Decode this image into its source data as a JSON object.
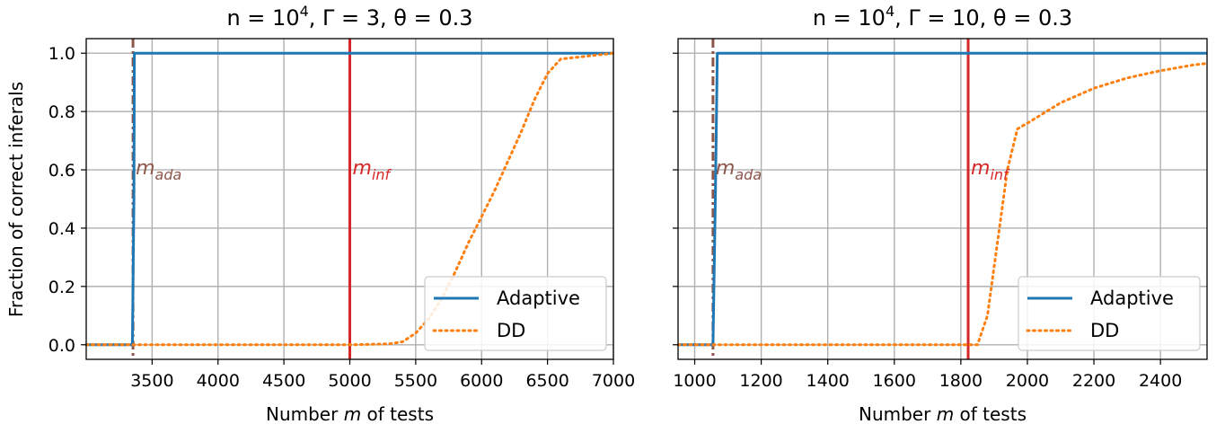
{
  "colors": {
    "adaptive": "#1f77b4",
    "dd": "#ff7f0e",
    "m_inf_line": "#d62728",
    "m_ada_line": "#8c564b",
    "grid": "#b0b0b0"
  },
  "chart_data": [
    {
      "type": "line",
      "title": "n = 10⁴, Γ = 3, θ = 0.3",
      "title_parts": {
        "n_base": "n = 10",
        "n_exp": "4",
        "rest": ", Γ = 3, θ = 0.3"
      },
      "xlabel": "Number m of tests",
      "xlabel_parts": {
        "pre": "Number ",
        "var": "m",
        "post": " of tests"
      },
      "ylabel": "Fraction of correct inferals",
      "xlim": [
        3000,
        7000
      ],
      "ylim": [
        -0.05,
        1.05
      ],
      "xticks": [
        3500,
        4000,
        4500,
        5000,
        5500,
        6000,
        6500,
        7000
      ],
      "yticks": [
        "0.0",
        "0.2",
        "0.4",
        "0.6",
        "0.8",
        "1.0"
      ],
      "grid": true,
      "legend": "lower right",
      "series": [
        {
          "name": "Adaptive",
          "style": "solid",
          "x": [
            3000,
            3350,
            3362,
            3365,
            7000
          ],
          "y": [
            0.0,
            0.0,
            0.5,
            1.0,
            1.0
          ]
        },
        {
          "name": "DD",
          "style": "dotted",
          "x": [
            3000,
            5000,
            5300,
            5400,
            5500,
            5600,
            5700,
            5800,
            5900,
            6000,
            6100,
            6200,
            6300,
            6400,
            6500,
            6600,
            6700,
            6800,
            7000
          ],
          "y": [
            0.0,
            0.0,
            0.003,
            0.01,
            0.04,
            0.09,
            0.16,
            0.25,
            0.35,
            0.44,
            0.53,
            0.63,
            0.73,
            0.84,
            0.93,
            0.98,
            0.985,
            0.99,
            1.0
          ]
        }
      ],
      "vlines": [
        {
          "label_base": "m",
          "label_sub": "ada",
          "x": 3355,
          "style": "dashdot",
          "color_key": "m_ada_line",
          "label_y": 0.61
        },
        {
          "label_base": "m",
          "label_sub": "inf",
          "x": 5000,
          "style": "solid",
          "color_key": "m_inf_line",
          "label_y": 0.61
        }
      ]
    },
    {
      "type": "line",
      "title": "n = 10⁴, Γ = 10, θ = 0.3",
      "title_parts": {
        "n_base": "n = 10",
        "n_exp": "4",
        "rest": ", Γ = 10, θ = 0.3"
      },
      "xlabel": "Number m of tests",
      "xlabel_parts": {
        "pre": "Number ",
        "var": "m",
        "post": " of tests"
      },
      "ylabel": "",
      "xlim": [
        950,
        2540
      ],
      "ylim": [
        -0.05,
        1.05
      ],
      "xticks": [
        1000,
        1200,
        1400,
        1600,
        1800,
        2000,
        2200,
        2400
      ],
      "yticks": [],
      "grid": true,
      "legend": "lower right",
      "series": [
        {
          "name": "Adaptive",
          "style": "solid",
          "x": [
            950,
            1055,
            1062,
            1068,
            2540
          ],
          "y": [
            0.0,
            0.0,
            0.5,
            1.0,
            1.0
          ]
        },
        {
          "name": "DD",
          "style": "dotted",
          "x": [
            950,
            1850,
            1880,
            1910,
            1940,
            1970,
            2000,
            2100,
            2200,
            2300,
            2400,
            2500,
            2540
          ],
          "y": [
            0.0,
            0.0,
            0.1,
            0.35,
            0.6,
            0.74,
            0.76,
            0.83,
            0.88,
            0.915,
            0.94,
            0.96,
            0.965
          ]
        }
      ],
      "vlines": [
        {
          "label_base": "m",
          "label_sub": "ada",
          "x": 1055,
          "style": "dashdot",
          "color_key": "m_ada_line",
          "label_y": 0.61
        },
        {
          "label_base": "m",
          "label_sub": "inf",
          "x": 1822,
          "style": "solid",
          "color_key": "m_inf_line",
          "label_y": 0.61
        }
      ]
    }
  ]
}
